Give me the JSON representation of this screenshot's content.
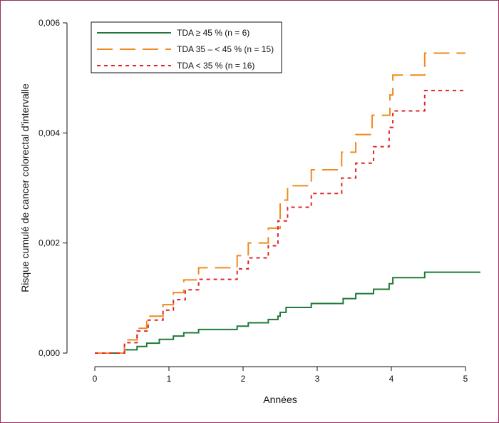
{
  "chart_data": {
    "type": "line",
    "step": true,
    "xlabel": "Années",
    "ylabel": "Risque cumulé de cancer colorectal d’intervalle",
    "xlim": [
      0,
      5.2
    ],
    "ylim": [
      0,
      0.006
    ],
    "xticks": [
      0,
      1,
      2,
      3,
      4,
      5
    ],
    "xtick_labels": [
      "0",
      "1",
      "2",
      "3",
      "4",
      "5"
    ],
    "yticks": [
      0,
      0.002,
      0.004,
      0.006
    ],
    "ytick_labels": [
      "0,000",
      "0,002",
      "0,004",
      "0,006"
    ],
    "legend_position": "top-left",
    "series": [
      {
        "name": "TDA ≥ 45 % (n = 6)",
        "color": "#1f7a3a",
        "dash": "solid",
        "points": [
          [
            0,
            0
          ],
          [
            0.4,
            6e-05
          ],
          [
            0.57,
            0.00012
          ],
          [
            0.7,
            0.00018
          ],
          [
            0.87,
            0.00025
          ],
          [
            1.06,
            0.00031
          ],
          [
            1.2,
            0.00037
          ],
          [
            1.4,
            0.00043
          ],
          [
            1.92,
            0.00049
          ],
          [
            2.07,
            0.00055
          ],
          [
            2.34,
            0.00061
          ],
          [
            2.47,
            0.00067
          ],
          [
            2.5,
            0.00074
          ],
          [
            2.58,
            0.00083
          ],
          [
            2.92,
            0.0009
          ],
          [
            3.35,
            0.00099
          ],
          [
            3.52,
            0.00108
          ],
          [
            3.76,
            0.00116
          ],
          [
            3.97,
            0.00126
          ],
          [
            4.02,
            0.00137
          ],
          [
            4.45,
            0.00147
          ],
          [
            5.2,
            0.00147
          ]
        ]
      },
      {
        "name": "TDA 35 – < 45 % (n = 15)",
        "color": "#f08a1c",
        "dash": "long-dash",
        "points": [
          [
            0,
            0
          ],
          [
            0.4,
            0.00024
          ],
          [
            0.57,
            0.00045
          ],
          [
            0.7,
            0.00067
          ],
          [
            0.92,
            0.00088
          ],
          [
            1.06,
            0.0011
          ],
          [
            1.2,
            0.00133
          ],
          [
            1.4,
            0.00155
          ],
          [
            1.92,
            0.00177
          ],
          [
            2.07,
            0.002
          ],
          [
            2.34,
            0.00227
          ],
          [
            2.5,
            0.00278
          ],
          [
            2.6,
            0.00304
          ],
          [
            2.92,
            0.00333
          ],
          [
            3.33,
            0.00365
          ],
          [
            3.52,
            0.00397
          ],
          [
            3.74,
            0.00432
          ],
          [
            3.98,
            0.00469
          ],
          [
            4.02,
            0.00505
          ],
          [
            4.45,
            0.00545
          ],
          [
            5.0,
            0.00545
          ]
        ]
      },
      {
        "name": "TDA < 35 % (n = 16)",
        "color": "#e0252a",
        "dash": "short-dash",
        "points": [
          [
            0,
            0
          ],
          [
            0.4,
            0.00019
          ],
          [
            0.57,
            0.0004
          ],
          [
            0.72,
            0.0006
          ],
          [
            0.92,
            0.00078
          ],
          [
            1.06,
            0.00097
          ],
          [
            1.22,
            0.00115
          ],
          [
            1.4,
            0.00134
          ],
          [
            1.92,
            0.00153
          ],
          [
            2.07,
            0.00173
          ],
          [
            2.34,
            0.00195
          ],
          [
            2.47,
            0.0024
          ],
          [
            2.6,
            0.00265
          ],
          [
            2.92,
            0.0029
          ],
          [
            3.33,
            0.00318
          ],
          [
            3.52,
            0.00345
          ],
          [
            3.76,
            0.00375
          ],
          [
            3.97,
            0.0041
          ],
          [
            4.02,
            0.0044
          ],
          [
            4.45,
            0.00477
          ],
          [
            5.0,
            0.00477
          ]
        ]
      }
    ]
  }
}
